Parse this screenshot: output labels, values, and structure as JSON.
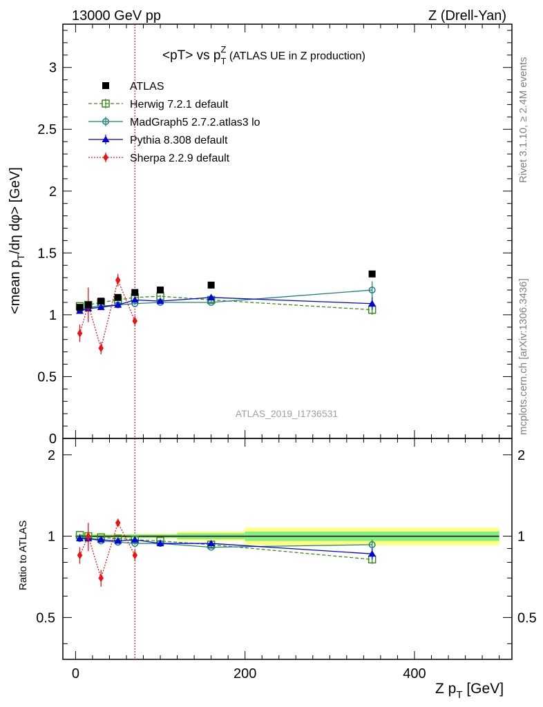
{
  "header": {
    "left": "13000 GeV pp",
    "right": "Z (Drell-Yan)"
  },
  "side_labels": {
    "rivet": "Rivet 3.1.10, ≥ 2.4M events",
    "mcplots": "mcplots.cern.ch [arXiv:1306.3436]"
  },
  "watermark": "ATLAS_2019_I1736531",
  "colors": {
    "ATLAS": "#000000",
    "Herwig": "#3a8a1a",
    "MadGraph": "#1a7f7f",
    "Pythia": "#0000dd",
    "Sherpa": "#ee1111",
    "band_inner": "#80f080",
    "band_outer": "#ffff80"
  },
  "chart_data": [
    {
      "type": "scatter",
      "panel": "main",
      "title": "<pT> vs p_T^Z (ATLAS UE in Z production)",
      "title_main": "<pT> vs p",
      "title_sup": "Z",
      "title_sub": "T",
      "title_tail": " (ATLAS UE in Z production)",
      "ylabel": "<mean p_T/dη dφ> [GeV]",
      "ylabel_parts": [
        "<mean p",
        "T",
        "/dη dφ> [GeV]"
      ],
      "ylim": [
        0,
        3.35
      ],
      "yticks": [
        0,
        0.5,
        1,
        1.5,
        2,
        2.5,
        3
      ],
      "ytick_labels": [
        "0",
        "0.5",
        "1",
        "1.5",
        "2",
        "2.5",
        "3"
      ],
      "vline_x": 70,
      "series": [
        {
          "name": "ATLAS",
          "key": "ATLAS",
          "marker": "square",
          "line": "none",
          "x": [
            5,
            15,
            30,
            50,
            70,
            100,
            160,
            350
          ],
          "y": [
            1.06,
            1.08,
            1.11,
            1.14,
            1.18,
            1.2,
            1.24,
            1.33
          ]
        },
        {
          "name": "Herwig 7.2.1 default",
          "key": "Herwig",
          "marker": "open-square",
          "line": "dashed",
          "x": [
            5,
            15,
            30,
            50,
            70,
            100,
            160,
            350
          ],
          "y": [
            1.07,
            1.08,
            1.1,
            1.12,
            1.14,
            1.15,
            1.12,
            1.04
          ],
          "err": [
            0.01,
            0.01,
            0.01,
            0.01,
            0.01,
            0.01,
            0.01,
            0.04
          ]
        },
        {
          "name": "MadGraph5 2.7.2.atlas3 lo",
          "key": "MadGraph",
          "marker": "open-circle",
          "line": "solid",
          "x": [
            5,
            15,
            30,
            50,
            70,
            100,
            160,
            350
          ],
          "y": [
            1.04,
            1.06,
            1.07,
            1.08,
            1.09,
            1.1,
            1.1,
            1.2
          ],
          "err": [
            0.01,
            0.01,
            0.01,
            0.01,
            0.01,
            0.01,
            0.01,
            0.07
          ]
        },
        {
          "name": "Pythia 8.308 default",
          "key": "Pythia",
          "marker": "triangle",
          "line": "solid",
          "x": [
            5,
            15,
            30,
            50,
            70,
            100,
            160,
            350
          ],
          "y": [
            1.03,
            1.05,
            1.06,
            1.08,
            1.12,
            1.11,
            1.14,
            1.09
          ],
          "err": [
            0.01,
            0.01,
            0.01,
            0.01,
            0.01,
            0.01,
            0.01,
            0.05
          ]
        },
        {
          "name": "Sherpa 2.2.9 default",
          "key": "Sherpa",
          "marker": "diamond",
          "line": "dotted",
          "x": [
            5,
            15,
            30,
            50,
            70
          ],
          "y": [
            0.85,
            1.08,
            0.73,
            1.28,
            0.95
          ],
          "err": [
            0.07,
            0.14,
            0.05,
            0.05,
            0.04
          ]
        }
      ]
    },
    {
      "type": "scatter",
      "panel": "ratio",
      "ylabel": "Ratio to ATLAS",
      "xlabel": "Z p_T [GeV]",
      "xlabel_parts": [
        "Z p",
        "T",
        " [GeV]"
      ],
      "xlim": [
        -15,
        515
      ],
      "xticks": [
        0,
        200,
        400
      ],
      "xtick_labels": [
        "0",
        "200",
        "400"
      ],
      "ylim": [
        0.35,
        2.3
      ],
      "yscale": "log",
      "yticks": [
        0.5,
        1,
        2
      ],
      "ytick_labels": [
        "0.5",
        "1",
        "2"
      ],
      "bands": [
        {
          "x": [
            0,
            10
          ],
          "inner": 0.01,
          "outer": 0.015
        },
        {
          "x": [
            10,
            20
          ],
          "inner": 0.01,
          "outer": 0.015
        },
        {
          "x": [
            20,
            40
          ],
          "inner": 0.012,
          "outer": 0.018
        },
        {
          "x": [
            40,
            60
          ],
          "inner": 0.012,
          "outer": 0.018
        },
        {
          "x": [
            60,
            80
          ],
          "inner": 0.015,
          "outer": 0.02
        },
        {
          "x": [
            80,
            120
          ],
          "inner": 0.015,
          "outer": 0.022
        },
        {
          "x": [
            120,
            200
          ],
          "inner": 0.025,
          "outer": 0.04
        },
        {
          "x": [
            200,
            500
          ],
          "inner": 0.04,
          "outer": 0.075
        }
      ],
      "series": [
        {
          "name": "Herwig 7.2.1 default",
          "key": "Herwig",
          "marker": "open-square",
          "line": "dashed",
          "x": [
            5,
            15,
            30,
            50,
            70,
            100,
            160,
            350
          ],
          "y": [
            1.01,
            1.0,
            0.99,
            0.98,
            0.97,
            0.96,
            0.93,
            0.82
          ],
          "err": [
            0.01,
            0.01,
            0.01,
            0.01,
            0.01,
            0.01,
            0.01,
            0.03
          ]
        },
        {
          "name": "MadGraph5 2.7.2.atlas3 lo",
          "key": "MadGraph",
          "marker": "open-circle",
          "line": "solid",
          "x": [
            5,
            15,
            30,
            50,
            70,
            100,
            160,
            350
          ],
          "y": [
            0.98,
            0.98,
            0.96,
            0.95,
            0.94,
            0.94,
            0.91,
            0.93
          ],
          "err": [
            0.01,
            0.01,
            0.01,
            0.01,
            0.01,
            0.01,
            0.01,
            0.04
          ]
        },
        {
          "name": "Pythia 8.308 default",
          "key": "Pythia",
          "marker": "triangle",
          "line": "solid",
          "x": [
            5,
            15,
            30,
            50,
            70,
            100,
            160,
            350
          ],
          "y": [
            0.98,
            0.98,
            0.97,
            0.96,
            0.97,
            0.94,
            0.94,
            0.86
          ],
          "err": [
            0.01,
            0.01,
            0.01,
            0.01,
            0.01,
            0.01,
            0.01,
            0.04
          ]
        },
        {
          "name": "Sherpa 2.2.9 default",
          "key": "Sherpa",
          "marker": "diamond",
          "line": "dotted",
          "x": [
            5,
            15,
            30,
            50,
            70
          ],
          "y": [
            0.85,
            1.0,
            0.7,
            1.12,
            0.85
          ],
          "err": [
            0.06,
            0.12,
            0.05,
            0.04,
            0.04
          ]
        }
      ]
    }
  ]
}
